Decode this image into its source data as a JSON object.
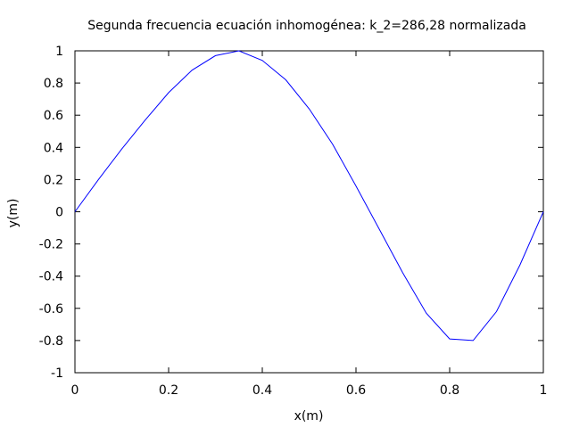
{
  "chart_data": {
    "type": "line",
    "title": "Segunda frecuencia ecuación inhomogénea: k_2=286,28 normalizada",
    "xlabel": "x(m)",
    "ylabel": "y(m)",
    "xlim": [
      0,
      1
    ],
    "ylim": [
      -1,
      1
    ],
    "x_ticks": [
      0,
      0.2,
      0.4,
      0.6,
      0.8,
      1
    ],
    "x_tick_labels": [
      "0",
      "0.2",
      "0.4",
      "0.6",
      "0.8",
      "1"
    ],
    "y_ticks": [
      -1,
      -0.8,
      -0.6,
      -0.4,
      -0.2,
      0,
      0.2,
      0.4,
      0.6,
      0.8,
      1
    ],
    "y_tick_labels": [
      "-1",
      "-0.8",
      "-0.6",
      "-0.4",
      "-0.2",
      "0",
      "0.2",
      "0.4",
      "0.6",
      "0.8",
      "1"
    ],
    "grid": false,
    "legend": "none",
    "colors": {
      "line": "#0000ff",
      "axes": "#000000",
      "background": "#ffffff"
    },
    "series": [
      {
        "x": [
          0,
          0.05,
          0.1,
          0.15,
          0.2,
          0.25,
          0.3,
          0.35,
          0.4,
          0.45,
          0.5,
          0.55,
          0.6,
          0.65,
          0.7,
          0.75,
          0.8,
          0.85,
          0.9,
          0.95,
          1
        ],
        "values": [
          0,
          0.2,
          0.39,
          0.57,
          0.74,
          0.88,
          0.97,
          1.0,
          0.94,
          0.82,
          0.64,
          0.42,
          0.16,
          -0.11,
          -0.38,
          -0.63,
          -0.79,
          -0.8,
          -0.62,
          -0.33,
          0
        ]
      }
    ]
  }
}
